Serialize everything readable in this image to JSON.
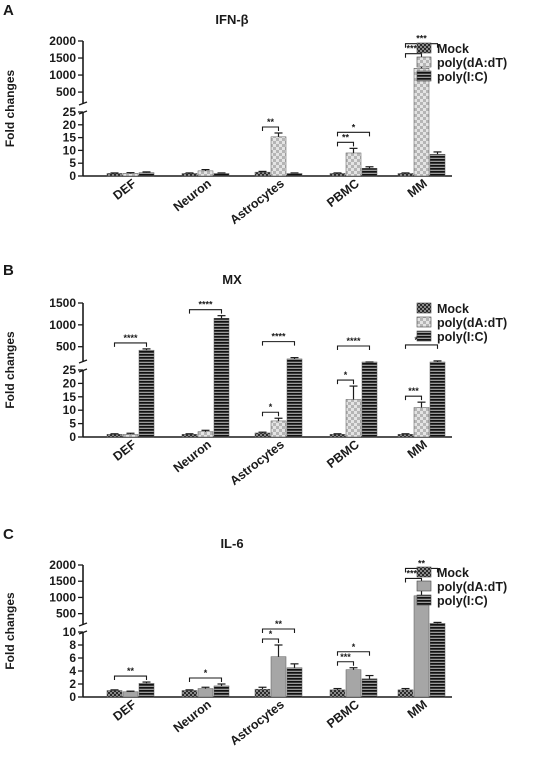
{
  "chart_data": [
    {
      "type": "bar",
      "panel_letter": "A",
      "title": "IFN-β",
      "ylabel": "Fold changes",
      "categories": [
        "DEF",
        "Neuron",
        "Astrocytes",
        "PBMC",
        "MM"
      ],
      "y_scale": "broken",
      "y_segments": [
        {
          "range": [
            0,
            25
          ],
          "ticks": [
            "0",
            "5",
            "10",
            "15",
            "20",
            "25"
          ],
          "tick_values": [
            0,
            5,
            10,
            15,
            20,
            25
          ]
        },
        {
          "range": [
            150,
            2000
          ],
          "ticks": [
            "500",
            "1000",
            "1500",
            "2000"
          ],
          "tick_values": [
            500,
            1000,
            1500,
            2000
          ]
        }
      ],
      "series": [
        {
          "name": "Mock",
          "pattern": "checker-dark",
          "values": [
            1,
            1,
            1.5,
            1,
            1
          ],
          "errors": [
            0.2,
            0.2,
            0.3,
            0.2,
            0.2
          ]
        },
        {
          "name": "poly(dA:dT)",
          "pattern": "checker-light",
          "values": [
            1,
            2,
            15.3,
            9,
            1200
          ],
          "errors": [
            0.3,
            0.5,
            1.5,
            1.8,
            250
          ]
        },
        {
          "name": "poly(I:C)",
          "pattern": "stripes",
          "values": [
            1.3,
            1,
            1,
            3,
            8.5
          ],
          "errors": [
            0.3,
            0.2,
            0.2,
            0.6,
            0.9
          ]
        }
      ],
      "annotations": [
        {
          "text": "**",
          "category": 2,
          "from": 0,
          "to": 1,
          "level": 1
        },
        {
          "text": "**",
          "category": 3,
          "from": 0,
          "to": 1,
          "level": 1
        },
        {
          "text": "*",
          "category": 3,
          "from": 0,
          "to": 2,
          "level": 2
        },
        {
          "text": "****",
          "category": 4,
          "from": 0,
          "to": 1,
          "level": 1
        },
        {
          "text": "***",
          "category": 4,
          "from": 0,
          "to": 2,
          "level": 2
        }
      ],
      "legend": {
        "placement": "right",
        "entries": [
          "Mock",
          "poly(dA:dT)",
          "poly(I:C)"
        ]
      }
    },
    {
      "type": "bar",
      "panel_letter": "B",
      "title": "MX",
      "ylabel": "Fold changes",
      "categories": [
        "DEF",
        "Neuron",
        "Astrocytes",
        "PBMC",
        "MM"
      ],
      "y_scale": "broken",
      "y_segments": [
        {
          "range": [
            0,
            25
          ],
          "ticks": [
            "0",
            "5",
            "10",
            "15",
            "20",
            "25"
          ],
          "tick_values": [
            0,
            5,
            10,
            15,
            20,
            25
          ]
        },
        {
          "range": [
            150,
            1500
          ],
          "ticks": [
            "500",
            "1000",
            "1500"
          ],
          "tick_values": [
            500,
            1000,
            1500
          ]
        }
      ],
      "series": [
        {
          "name": "Mock",
          "pattern": "checker-dark",
          "values": [
            1,
            1,
            1.5,
            1,
            1
          ],
          "errors": [
            0.2,
            0.2,
            0.3,
            0.2,
            0.2
          ]
        },
        {
          "name": "poly(dA:dT)",
          "pattern": "checker-light",
          "values": [
            1,
            2,
            6,
            14,
            11
          ],
          "errors": [
            0.4,
            0.5,
            1,
            5,
            2
          ]
        },
        {
          "name": "poly(I:C)",
          "pattern": "stripes",
          "values": [
            420,
            1150,
            220,
            90,
            150
          ],
          "errors": [
            30,
            60,
            30,
            10,
            25
          ]
        }
      ],
      "annotations": [
        {
          "text": "****",
          "category": 0,
          "from": 0,
          "to": 2,
          "level": 1
        },
        {
          "text": "****",
          "category": 1,
          "from": 0,
          "to": 2,
          "level": 1
        },
        {
          "text": "****",
          "category": 2,
          "from": 0,
          "to": 2,
          "level": 2
        },
        {
          "text": "*",
          "category": 2,
          "from": 0,
          "to": 1,
          "level": 1
        },
        {
          "text": "****",
          "category": 3,
          "from": 0,
          "to": 2,
          "level": 2
        },
        {
          "text": "*",
          "category": 3,
          "from": 0,
          "to": 1,
          "level": 1
        },
        {
          "text": "****",
          "category": 4,
          "from": 0,
          "to": 2,
          "level": 2
        },
        {
          "text": "***",
          "category": 4,
          "from": 0,
          "to": 1,
          "level": 1
        }
      ],
      "legend": {
        "placement": "right",
        "entries": [
          "Mock",
          "poly(dA:dT)",
          "poly(I:C)"
        ]
      }
    },
    {
      "type": "bar",
      "panel_letter": "C",
      "title": "IL-6",
      "ylabel": "Fold changes",
      "categories": [
        "DEF",
        "Neuron",
        "Astrocytes",
        "PBMC",
        "MM"
      ],
      "y_scale": "broken",
      "y_segments": [
        {
          "range": [
            0,
            10
          ],
          "ticks": [
            "0",
            "2",
            "4",
            "6",
            "8",
            "10"
          ],
          "tick_values": [
            0,
            2,
            4,
            6,
            8,
            10
          ]
        },
        {
          "range": [
            150,
            2000
          ],
          "ticks": [
            "500",
            "1000",
            "1500",
            "2000"
          ],
          "tick_values": [
            500,
            1000,
            1500,
            2000
          ]
        }
      ],
      "series": [
        {
          "name": "Mock",
          "pattern": "checker-dark",
          "values": [
            1,
            1,
            1.2,
            1.1,
            1.1
          ],
          "errors": [
            0.1,
            0.1,
            0.3,
            0.2,
            0.2
          ]
        },
        {
          "name": "poly(dA:dT)",
          "pattern": "solid-gray",
          "values": [
            0.8,
            1.3,
            6.2,
            4.2,
            1050
          ],
          "errors": [
            0.1,
            0.2,
            1.8,
            0.3,
            350
          ]
        },
        {
          "name": "poly(I:C)",
          "pattern": "stripes",
          "values": [
            2.1,
            1.7,
            4.5,
            2.8,
            200
          ],
          "errors": [
            0.2,
            0.3,
            0.6,
            0.5,
            30
          ]
        }
      ],
      "annotations": [
        {
          "text": "**",
          "category": 0,
          "from": 0,
          "to": 2,
          "level": 1
        },
        {
          "text": "*",
          "category": 1,
          "from": 0,
          "to": 2,
          "level": 1
        },
        {
          "text": "*",
          "category": 2,
          "from": 0,
          "to": 1,
          "level": 1
        },
        {
          "text": "**",
          "category": 2,
          "from": 0,
          "to": 2,
          "level": 2
        },
        {
          "text": "***",
          "category": 3,
          "from": 0,
          "to": 1,
          "level": 1
        },
        {
          "text": "*",
          "category": 3,
          "from": 0,
          "to": 2,
          "level": 2
        },
        {
          "text": "****",
          "category": 4,
          "from": 0,
          "to": 1,
          "level": 1
        },
        {
          "text": "**",
          "category": 4,
          "from": 0,
          "to": 2,
          "level": 2
        }
      ],
      "legend": {
        "placement": "right",
        "entries": [
          "Mock",
          "poly(dA:dT)",
          "poly(I:C)"
        ]
      }
    }
  ],
  "colors": {
    "axis": "#1a1a1a",
    "checker_dark_a": "#2a2a2a",
    "checker_dark_b": "#8a8a8a",
    "checker_light_a": "#b5b5b5",
    "checker_light_b": "#e4e4e4",
    "stripe_dark": "#111111",
    "stripe_light": "#9a9a9a",
    "solid_gray": "#a6a6a6"
  }
}
